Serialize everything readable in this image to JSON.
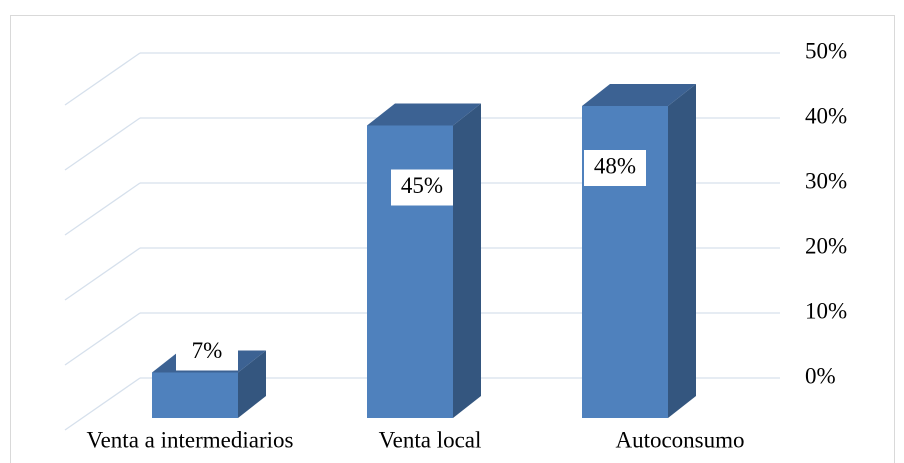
{
  "chart_data": {
    "type": "bar3d",
    "categories": [
      "Venta a intermediarios",
      "Venta local",
      "Autoconsumo"
    ],
    "values": [
      7,
      45,
      48
    ],
    "value_labels": [
      "7%",
      "45%",
      "48%"
    ],
    "color": "#4f81bd",
    "ylim": [
      0,
      50
    ],
    "yticks": [
      {
        "value": 0,
        "label": "0%"
      },
      {
        "value": 10,
        "label": "10%"
      },
      {
        "value": 20,
        "label": "20%"
      },
      {
        "value": 30,
        "label": "30%"
      },
      {
        "value": 40,
        "label": "40%"
      },
      {
        "value": 50,
        "label": "50%"
      }
    ],
    "grid": true
  }
}
